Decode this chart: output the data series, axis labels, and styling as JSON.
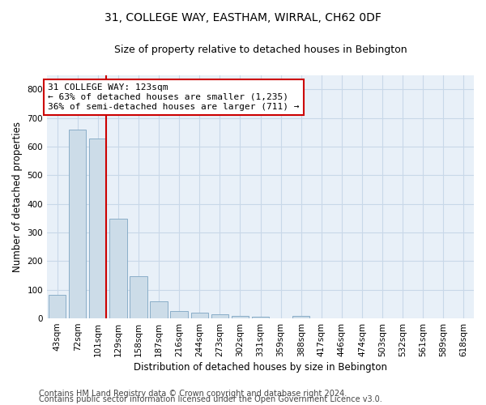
{
  "title": "31, COLLEGE WAY, EASTHAM, WIRRAL, CH62 0DF",
  "subtitle": "Size of property relative to detached houses in Bebington",
  "xlabel": "Distribution of detached houses by size in Bebington",
  "ylabel": "Number of detached properties",
  "categories": [
    "43sqm",
    "72sqm",
    "101sqm",
    "129sqm",
    "158sqm",
    "187sqm",
    "216sqm",
    "244sqm",
    "273sqm",
    "302sqm",
    "331sqm",
    "359sqm",
    "388sqm",
    "417sqm",
    "446sqm",
    "474sqm",
    "503sqm",
    "532sqm",
    "561sqm",
    "589sqm",
    "618sqm"
  ],
  "values": [
    82,
    660,
    628,
    348,
    148,
    60,
    25,
    20,
    15,
    10,
    5,
    0,
    8,
    0,
    0,
    0,
    0,
    0,
    0,
    0,
    0
  ],
  "bar_color": "#ccdce8",
  "bar_edge_color": "#8aaec8",
  "grid_color": "#c8d8e8",
  "background_color": "#e8f0f8",
  "ref_line_color": "#cc0000",
  "annotation_text": "31 COLLEGE WAY: 123sqm\n← 63% of detached houses are smaller (1,235)\n36% of semi-detached houses are larger (711) →",
  "annotation_box_color": "#cc0000",
  "ylim": [
    0,
    850
  ],
  "yticks": [
    0,
    100,
    200,
    300,
    400,
    500,
    600,
    700,
    800
  ],
  "footer1": "Contains HM Land Registry data © Crown copyright and database right 2024.",
  "footer2": "Contains public sector information licensed under the Open Government Licence v3.0.",
  "title_fontsize": 10,
  "subtitle_fontsize": 9,
  "axis_label_fontsize": 8.5,
  "tick_fontsize": 7.5,
  "footer_fontsize": 7
}
